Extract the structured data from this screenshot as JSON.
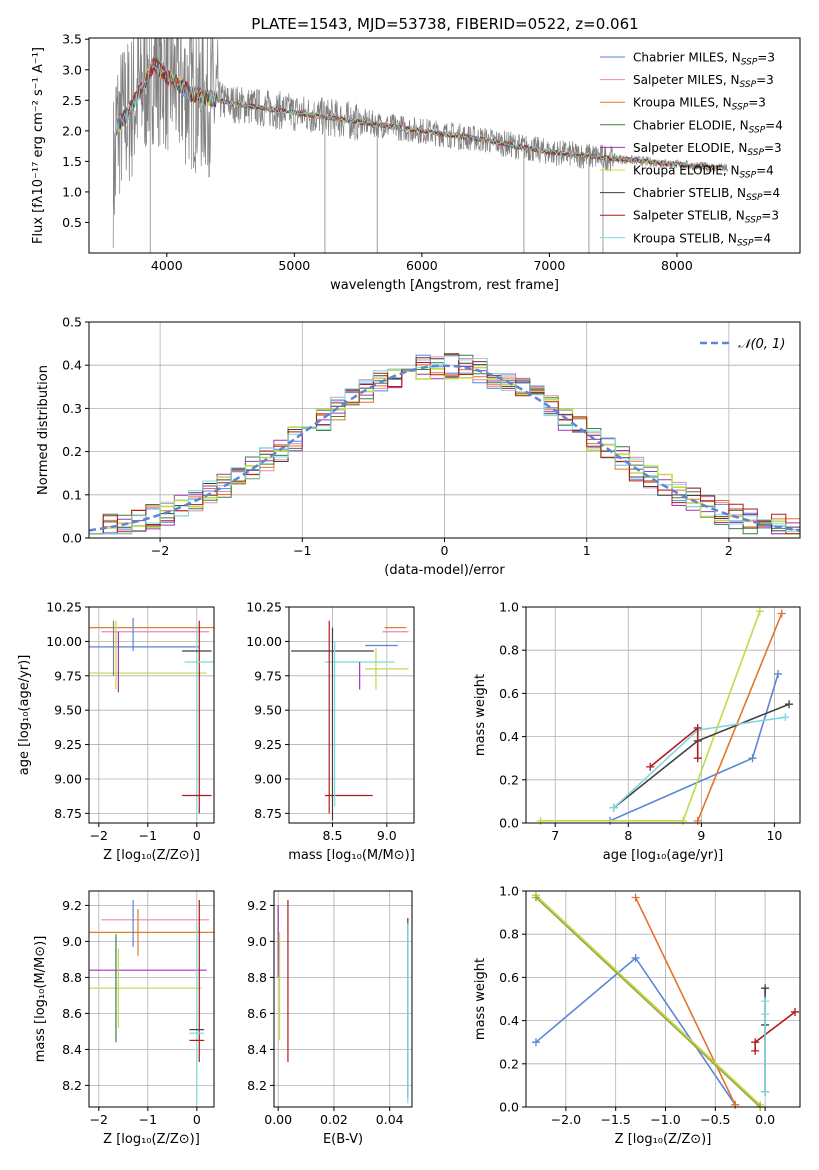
{
  "figure_title": "PLATE=1543, MJD=53738, FIBERID=0522, z=0.061",
  "chart_data": [
    {
      "id": "spectrum",
      "type": "line",
      "xlabel": "wavelength [Angstrom, rest frame]",
      "ylabel": "Flux [fλ10⁻¹⁷ erg cm⁻² s⁻¹ A⁻¹]",
      "xlim": [
        3390,
        8965
      ],
      "ylim": [
        0.0,
        3.52
      ],
      "xticks": [
        4000,
        5000,
        6000,
        7000,
        8000
      ],
      "yticks": [
        0.5,
        1.0,
        1.5,
        2.0,
        2.5,
        3.0,
        3.5
      ],
      "grid": false,
      "legend_position": "top-right",
      "data_color": "#808080",
      "model_curve": {
        "x": [
          3600,
          3700,
          3800,
          3900,
          4000,
          4200,
          4500,
          5000,
          5500,
          6000,
          6500,
          7000,
          7500,
          8000,
          8400
        ],
        "y": [
          2.05,
          2.3,
          2.7,
          3.1,
          2.9,
          2.6,
          2.45,
          2.3,
          2.15,
          2.0,
          1.85,
          1.65,
          1.55,
          1.45,
          1.38
        ]
      },
      "series": [
        {
          "name": "Chabrier MILES, N_SSP=3",
          "color": "#5b86d6"
        },
        {
          "name": "Salpeter MILES, N_SSP=3",
          "color": "#e88ab5"
        },
        {
          "name": "Kroupa MILES, N_SSP=3",
          "color": "#d9822b"
        },
        {
          "name": "Chabrier ELODIE, N_SSP=4",
          "color": "#3f7f3f"
        },
        {
          "name": "Salpeter ELODIE, N_SSP=3",
          "color": "#a236b5"
        },
        {
          "name": "Kroupa ELODIE, N_SSP=4",
          "color": "#d7d93a"
        },
        {
          "name": "Chabrier STELIB, N_SSP=4",
          "color": "#404040"
        },
        {
          "name": "Salpeter STELIB, N_SSP=3",
          "color": "#b01b1b"
        },
        {
          "name": "Kroupa STELIB, N_SSP=4",
          "color": "#7fd8de"
        }
      ]
    },
    {
      "id": "residuals",
      "type": "line",
      "xlabel": "(data-model)/error",
      "ylabel": "Normed distribution",
      "xlim": [
        -2.5,
        2.5
      ],
      "ylim": [
        0.0,
        0.5
      ],
      "xticks": [
        -2,
        -1,
        0,
        1,
        2
      ],
      "yticks": [
        0.0,
        0.1,
        0.2,
        0.3,
        0.4,
        0.5
      ],
      "grid": true,
      "legend_position": "top-right",
      "legend_label": "𝒩(0, 1)",
      "gaussian_color": "#5b86d6",
      "histogram_colors": [
        "#5b86d6",
        "#e88ab5",
        "#e5742b",
        "#3f7f3f",
        "#a236b5",
        "#c2d94a",
        "#404040",
        "#b01b1b",
        "#7fd8de"
      ]
    },
    {
      "id": "age-vs-Z",
      "type": "scatter",
      "xlabel": "Z [log₁₀(Z/Z⊙)]",
      "ylabel": "age  [log₁₀(age/yr)]",
      "xlim": [
        -2.2,
        0.35
      ],
      "ylim": [
        8.68,
        10.25
      ],
      "xticks": [
        -2,
        -1,
        0
      ],
      "xtick_labels": [
        "−2",
        "−1",
        "0"
      ],
      "yticks": [
        8.75,
        9.0,
        9.25,
        9.5,
        9.75,
        10.0,
        10.25
      ],
      "ytick_labels": [
        "8.75",
        "9.00",
        "9.25",
        "9.50",
        "9.75",
        "10.00",
        "10.25"
      ],
      "grid": true,
      "points": [
        {
          "x": -0.85,
          "y": 10.1,
          "xerr": 1.45,
          "yerr": 0.0,
          "color": "#d9822b"
        },
        {
          "x": -0.85,
          "y": 10.07,
          "xerr": 1.1,
          "yerr": 0.0,
          "color": "#e88ab5"
        },
        {
          "x": -1.1,
          "y": 9.96,
          "xerr": 1.15,
          "yerr": 0.0,
          "color": "#5b86d6"
        },
        {
          "x": -1.0,
          "y": 9.77,
          "xerr": 1.2,
          "yerr": 0.0,
          "color": "#c2d94a"
        },
        {
          "x": -1.3,
          "y": 10.05,
          "xerr": 0.0,
          "yerr": 0.12,
          "color": "#5b86d6"
        },
        {
          "x": -1.6,
          "y": 9.85,
          "xerr": 0.0,
          "yerr": 0.22,
          "color": "#a236b5"
        },
        {
          "x": -1.65,
          "y": 9.9,
          "xerr": 0.0,
          "yerr": 0.25,
          "color": "#c2d94a"
        },
        {
          "x": -1.7,
          "y": 9.95,
          "xerr": 0.0,
          "yerr": 0.2,
          "color": "#7f7f7f"
        },
        {
          "x": 0.0,
          "y": 9.4,
          "xerr": 0.0,
          "yerr": 0.7,
          "color": "#7fd8de"
        },
        {
          "x": 0.05,
          "y": 9.45,
          "xerr": 0.0,
          "yerr": 0.7,
          "color": "#b01b1b"
        },
        {
          "x": 0.0,
          "y": 9.93,
          "xerr": 0.3,
          "yerr": 0.0,
          "color": "#404040"
        },
        {
          "x": 0.05,
          "y": 9.85,
          "xerr": 0.3,
          "yerr": 0.0,
          "color": "#7fd8de"
        },
        {
          "x": 0.0,
          "y": 8.88,
          "xerr": 0.3,
          "yerr": 0.0,
          "color": "#b01b1b"
        }
      ]
    },
    {
      "id": "age-vs-mass",
      "type": "scatter",
      "xlabel": "mass [log₁₀(M/M⊙)]",
      "xlim": [
        8.1,
        9.25
      ],
      "ylim": [
        8.68,
        10.25
      ],
      "xticks": [
        8.5,
        9.0
      ],
      "xtick_labels": [
        "8.5",
        "9.0"
      ],
      "yticks": [
        8.75,
        9.0,
        9.25,
        9.5,
        9.75,
        10.0,
        10.25
      ],
      "ytick_labels": [
        "8.75",
        "9.00",
        "9.25",
        "9.50",
        "9.75",
        "10.00",
        "10.25"
      ],
      "grid": true,
      "points": [
        {
          "x": 8.5,
          "y": 9.93,
          "xerr": 0.38,
          "yerr": 0.0,
          "color": "#404040"
        },
        {
          "x": 8.75,
          "y": 9.85,
          "xerr": 0.32,
          "yerr": 0.0,
          "color": "#7fd8de"
        },
        {
          "x": 8.65,
          "y": 8.88,
          "xerr": 0.22,
          "yerr": 0.0,
          "color": "#b01b1b"
        },
        {
          "x": 9.08,
          "y": 10.1,
          "xerr": 0.1,
          "yerr": 0.0,
          "color": "#d9822b"
        },
        {
          "x": 9.08,
          "y": 10.07,
          "xerr": 0.12,
          "yerr": 0.0,
          "color": "#e88ab5"
        },
        {
          "x": 8.47,
          "y": 9.45,
          "xerr": 0.0,
          "yerr": 0.7,
          "color": "#b01b1b"
        },
        {
          "x": 8.5,
          "y": 9.4,
          "xerr": 0.0,
          "yerr": 0.7,
          "color": "#404040"
        },
        {
          "x": 8.52,
          "y": 9.4,
          "xerr": 0.0,
          "yerr": 0.6,
          "color": "#7fd8de"
        },
        {
          "x": 8.75,
          "y": 9.75,
          "xerr": 0.0,
          "yerr": 0.1,
          "color": "#a236b5"
        },
        {
          "x": 8.9,
          "y": 9.8,
          "xerr": 0.0,
          "yerr": 0.15,
          "color": "#c2d94a"
        },
        {
          "x": 9.0,
          "y": 9.8,
          "xerr": 0.2,
          "yerr": 0.0,
          "color": "#c2d94a"
        },
        {
          "x": 8.95,
          "y": 9.97,
          "xerr": 0.15,
          "yerr": 0.0,
          "color": "#5b86d6"
        }
      ]
    },
    {
      "id": "weight-vs-age",
      "type": "line",
      "xlabel": "age  [log₁₀(age/yr)]",
      "ylabel": "mass weight",
      "xlim": [
        6.6,
        10.35
      ],
      "ylim": [
        0.0,
        1.0
      ],
      "xticks": [
        7,
        8,
        9,
        10
      ],
      "xtick_labels": [
        "7",
        "8",
        "9",
        "10"
      ],
      "yticks": [
        0.0,
        0.2,
        0.4,
        0.6,
        0.8,
        1.0
      ],
      "ytick_labels": [
        "0.0",
        "0.2",
        "0.4",
        "0.6",
        "0.8",
        "1.0"
      ],
      "grid": true,
      "series": [
        {
          "color": "#5b86d6",
          "x": [
            7.75,
            9.7,
            10.05
          ],
          "y": [
            0.01,
            0.3,
            0.69
          ]
        },
        {
          "color": "#e5742b",
          "x": [
            8.95,
            10.1
          ],
          "y": [
            0.01,
            0.97
          ]
        },
        {
          "color": "#c2d94a",
          "x": [
            6.8,
            8.75,
            9.8
          ],
          "y": [
            0.01,
            0.01,
            0.98
          ]
        },
        {
          "color": "#404040",
          "x": [
            7.8,
            8.95,
            10.2
          ],
          "y": [
            0.07,
            0.38,
            0.55
          ]
        },
        {
          "color": "#7fd8de",
          "x": [
            7.8,
            8.95,
            10.15
          ],
          "y": [
            0.07,
            0.43,
            0.49
          ]
        },
        {
          "color": "#b01b1b",
          "x": [
            8.3,
            8.95,
            8.95
          ],
          "y": [
            0.26,
            0.44,
            0.3
          ]
        }
      ]
    },
    {
      "id": "mass-vs-Z",
      "type": "scatter",
      "xlabel": "Z [log₁₀(Z/Z⊙)]",
      "ylabel": "mass [log₁₀(M/M⊙)]",
      "xlim": [
        -2.2,
        0.35
      ],
      "ylim": [
        8.08,
        9.28
      ],
      "xticks": [
        -2,
        -1,
        0
      ],
      "xtick_labels": [
        "−2",
        "−1",
        "0"
      ],
      "yticks": [
        8.2,
        8.4,
        8.6,
        8.8,
        9.0,
        9.2
      ],
      "ytick_labels": [
        "8.2",
        "8.4",
        "8.6",
        "8.8",
        "9.0",
        "9.2"
      ],
      "grid": true,
      "points": [
        {
          "x": -0.85,
          "y": 9.05,
          "xerr": 1.45,
          "yerr": 0.0,
          "color": "#d9822b"
        },
        {
          "x": -0.85,
          "y": 9.12,
          "xerr": 1.1,
          "yerr": 0.0,
          "color": "#e88ab5"
        },
        {
          "x": -1.0,
          "y": 8.84,
          "xerr": 1.2,
          "yerr": 0.0,
          "color": "#a236b5"
        },
        {
          "x": -1.05,
          "y": 8.74,
          "xerr": 1.15,
          "yerr": 0.0,
          "color": "#c2d94a"
        },
        {
          "x": -1.3,
          "y": 9.1,
          "xerr": 0.0,
          "yerr": 0.13,
          "color": "#5b86d6"
        },
        {
          "x": -1.2,
          "y": 9.05,
          "xerr": 0.0,
          "yerr": 0.13,
          "color": "#d9822b"
        },
        {
          "x": -1.65,
          "y": 8.74,
          "xerr": 0.0,
          "yerr": 0.3,
          "color": "#3f7f3f"
        },
        {
          "x": -1.6,
          "y": 8.74,
          "xerr": 0.0,
          "yerr": 0.22,
          "color": "#c2d94a"
        },
        {
          "x": 0.0,
          "y": 8.6,
          "xerr": 0.0,
          "yerr": 0.5,
          "color": "#7fd8de"
        },
        {
          "x": 0.05,
          "y": 8.78,
          "xerr": 0.0,
          "yerr": 0.45,
          "color": "#b01b1b"
        },
        {
          "x": 0.0,
          "y": 8.51,
          "xerr": 0.15,
          "yerr": 0.0,
          "color": "#404040"
        },
        {
          "x": 0.0,
          "y": 8.49,
          "xerr": 0.15,
          "yerr": 0.0,
          "color": "#7fd8de"
        },
        {
          "x": 0.0,
          "y": 8.45,
          "xerr": 0.15,
          "yerr": 0.0,
          "color": "#b01b1b"
        }
      ]
    },
    {
      "id": "mass-vs-ebv",
      "type": "scatter",
      "xlabel": "E(B-V)",
      "xlim": [
        -0.0015,
        0.048
      ],
      "ylim": [
        8.08,
        9.28
      ],
      "xticks": [
        0.0,
        0.02,
        0.04
      ],
      "xtick_labels": [
        "0.00",
        "0.02",
        "0.04"
      ],
      "yticks": [
        8.2,
        8.4,
        8.6,
        8.8,
        9.0,
        9.2
      ],
      "ytick_labels": [
        "8.2",
        "8.4",
        "8.6",
        "8.8",
        "9.0",
        "9.2"
      ],
      "grid": true,
      "points": [
        {
          "x": 0.0,
          "y": 9.05,
          "xerr": 0.0,
          "yerr": 0.15,
          "color": "#e88ab5"
        },
        {
          "x": 0.0,
          "y": 9.0,
          "xerr": 0.0,
          "yerr": 0.2,
          "color": "#a236b5"
        },
        {
          "x": 0.0005,
          "y": 8.75,
          "xerr": 0.0,
          "yerr": 0.3,
          "color": "#c2d94a"
        },
        {
          "x": 0.0035,
          "y": 8.78,
          "xerr": 0.0,
          "yerr": 0.45,
          "color": "#b01b1b"
        },
        {
          "x": 0.0465,
          "y": 8.63,
          "xerr": 0.0,
          "yerr": 0.5,
          "color": "#404040"
        },
        {
          "x": 0.0465,
          "y": 8.6,
          "xerr": 0.0,
          "yerr": 0.5,
          "color": "#7fd8de"
        }
      ]
    },
    {
      "id": "weight-vs-Z",
      "type": "line",
      "xlabel": "Z [log₁₀(Z/Z⊙)]",
      "ylabel": "mass weight",
      "xlim": [
        -2.4,
        0.35
      ],
      "ylim": [
        0.0,
        1.0
      ],
      "xticks": [
        -2.0,
        -1.5,
        -1.0,
        -0.5,
        0.0
      ],
      "xtick_labels": [
        "−2.0",
        "−1.5",
        "−1.0",
        "−0.5",
        "0.0"
      ],
      "yticks": [
        0.0,
        0.2,
        0.4,
        0.6,
        0.8,
        1.0
      ],
      "ytick_labels": [
        "0.0",
        "0.2",
        "0.4",
        "0.6",
        "0.8",
        "1.0"
      ],
      "grid": true,
      "series": [
        {
          "color": "#5b86d6",
          "x": [
            -2.3,
            -1.3,
            -0.3
          ],
          "y": [
            0.3,
            0.69,
            0.01
          ]
        },
        {
          "color": "#e5742b",
          "x": [
            -1.3,
            -0.3
          ],
          "y": [
            0.97,
            0.01
          ]
        },
        {
          "color": "#c2d94a",
          "x": [
            -2.3,
            -0.05
          ],
          "y": [
            0.98,
            0.01
          ]
        },
        {
          "color": "#9ea93d",
          "x": [
            -2.3,
            -0.05
          ],
          "y": [
            0.97,
            0.0
          ]
        },
        {
          "color": "#b01b1b",
          "x": [
            -0.1,
            -0.1,
            0.3
          ],
          "y": [
            0.26,
            0.3,
            0.44
          ]
        },
        {
          "color": "#404040",
          "x": [
            0.0,
            0.0,
            0.0
          ],
          "y": [
            0.07,
            0.38,
            0.55
          ]
        },
        {
          "color": "#7fd8de",
          "x": [
            0.0,
            0.0,
            0.0
          ],
          "y": [
            0.07,
            0.43,
            0.49
          ]
        }
      ]
    }
  ]
}
